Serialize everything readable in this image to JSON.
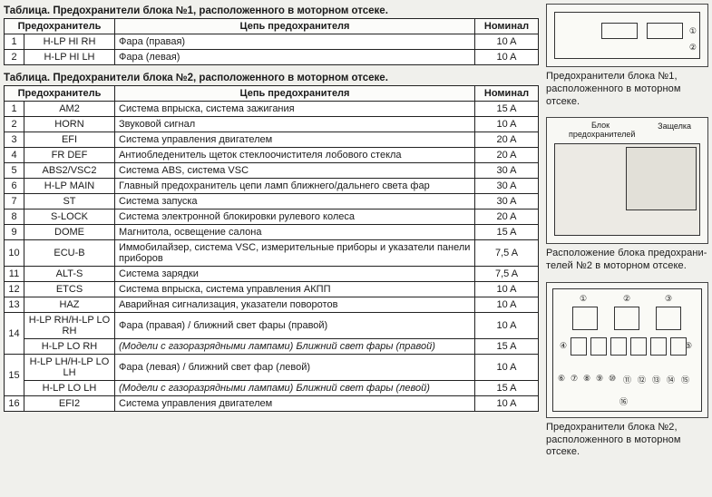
{
  "table1": {
    "caption": "Таблица. Предохранители блока №1, расположенного в моторном отсеке.",
    "headers": {
      "fuse": "Предохранитель",
      "circuit": "Цепь предохранителя",
      "nominal": "Номинал"
    },
    "rows": [
      {
        "n": "1",
        "code": "H-LP HI RH",
        "circuit": "Фара (правая)",
        "nominal": "10 A"
      },
      {
        "n": "2",
        "code": "H-LP HI LH",
        "circuit": "Фара (левая)",
        "nominal": "10 A"
      }
    ]
  },
  "table2": {
    "caption": "Таблица. Предохранители блока №2, расположенного в моторном отсеке.",
    "headers": {
      "fuse": "Предохранитель",
      "circuit": "Цепь предохранителя",
      "nominal": "Номинал"
    },
    "rows": [
      {
        "n": "1",
        "code": "AM2",
        "circuit": "Система впрыска, система зажигания",
        "nominal": "15 A"
      },
      {
        "n": "2",
        "code": "HORN",
        "circuit": "Звуковой сигнал",
        "nominal": "10 A"
      },
      {
        "n": "3",
        "code": "EFI",
        "circuit": "Система управления двигателем",
        "nominal": "20 A"
      },
      {
        "n": "4",
        "code": "FR DEF",
        "circuit": "Антиобледенитель щеток стеклоочистителя лобового стекла",
        "nominal": "20 A"
      },
      {
        "n": "5",
        "code": "ABS2/VSC2",
        "circuit": "Система ABS, система VSC",
        "nominal": "30 A"
      },
      {
        "n": "6",
        "code": "H-LP MAIN",
        "circuit": "Главный предохранитель цепи ламп ближнего/дальнего света фар",
        "nominal": "30 A"
      },
      {
        "n": "7",
        "code": "ST",
        "circuit": "Система запуска",
        "nominal": "30 A"
      },
      {
        "n": "8",
        "code": "S-LOCK",
        "circuit": "Система электронной блокировки рулевого колеса",
        "nominal": "20 A"
      },
      {
        "n": "9",
        "code": "DOME",
        "circuit": "Магнитола, освещение салона",
        "nominal": "15 A"
      },
      {
        "n": "10",
        "code": "ECU-B",
        "circuit": "Иммобилайзер, система VSC, измеритель­ные приборы и указатели панели приборов",
        "nominal": "7,5 A"
      },
      {
        "n": "11",
        "code": "ALT-S",
        "circuit": "Система зарядки",
        "nominal": "7,5 A"
      },
      {
        "n": "12",
        "code": "ETCS",
        "circuit": "Система впрыска, система управления АКПП",
        "nominal": "10 A"
      },
      {
        "n": "13",
        "code": "HAZ",
        "circuit": "Аварийная сигнализация, указатели поворотов",
        "nominal": "10 A"
      },
      {
        "n": "14",
        "code": "H-LP RH/H-LP LO RH",
        "circuit": "Фара (правая) / ближний свет фары (правой)",
        "nominal": "10 A",
        "sub": {
          "code": "H-LP LO RH",
          "circuit_italic": "(Модели с газоразрядными лампами) Ближний свет фары (правой)",
          "nominal": "15 A"
        }
      },
      {
        "n": "15",
        "code": "H-LP LH/H-LP LO LH",
        "circuit": "Фара (левая) / ближний свет фар (левой)",
        "nominal": "10 A",
        "sub": {
          "code": "H-LP LO LH",
          "circuit_italic": "(Модели с газоразрядными лампами) Ближний свет фары (левой)",
          "nominal": "15 A"
        }
      },
      {
        "n": "16",
        "code": "EFI2",
        "circuit": "Система управления двигателем",
        "nominal": "10 A"
      }
    ]
  },
  "diagrams": {
    "d1": {
      "caption": "Предохранители блока №1, распо­ложенного в моторном отсеке.",
      "labels": [
        "①",
        "②"
      ]
    },
    "d2": {
      "caption": "Расположение блока предохрани­телей №2 в моторном отсеке.",
      "labels": [
        "Блок предохранителей",
        "Защелка"
      ]
    },
    "d3": {
      "caption": "Предохранители блока №2, распо­ложенного в моторном отсеке.",
      "labels": [
        "①",
        "②",
        "③",
        "④",
        "⑤",
        "⑥",
        "⑦",
        "⑧",
        "⑨",
        "⑩",
        "⑪",
        "⑫",
        "⑬",
        "⑭",
        "⑮",
        "⑯"
      ]
    }
  }
}
